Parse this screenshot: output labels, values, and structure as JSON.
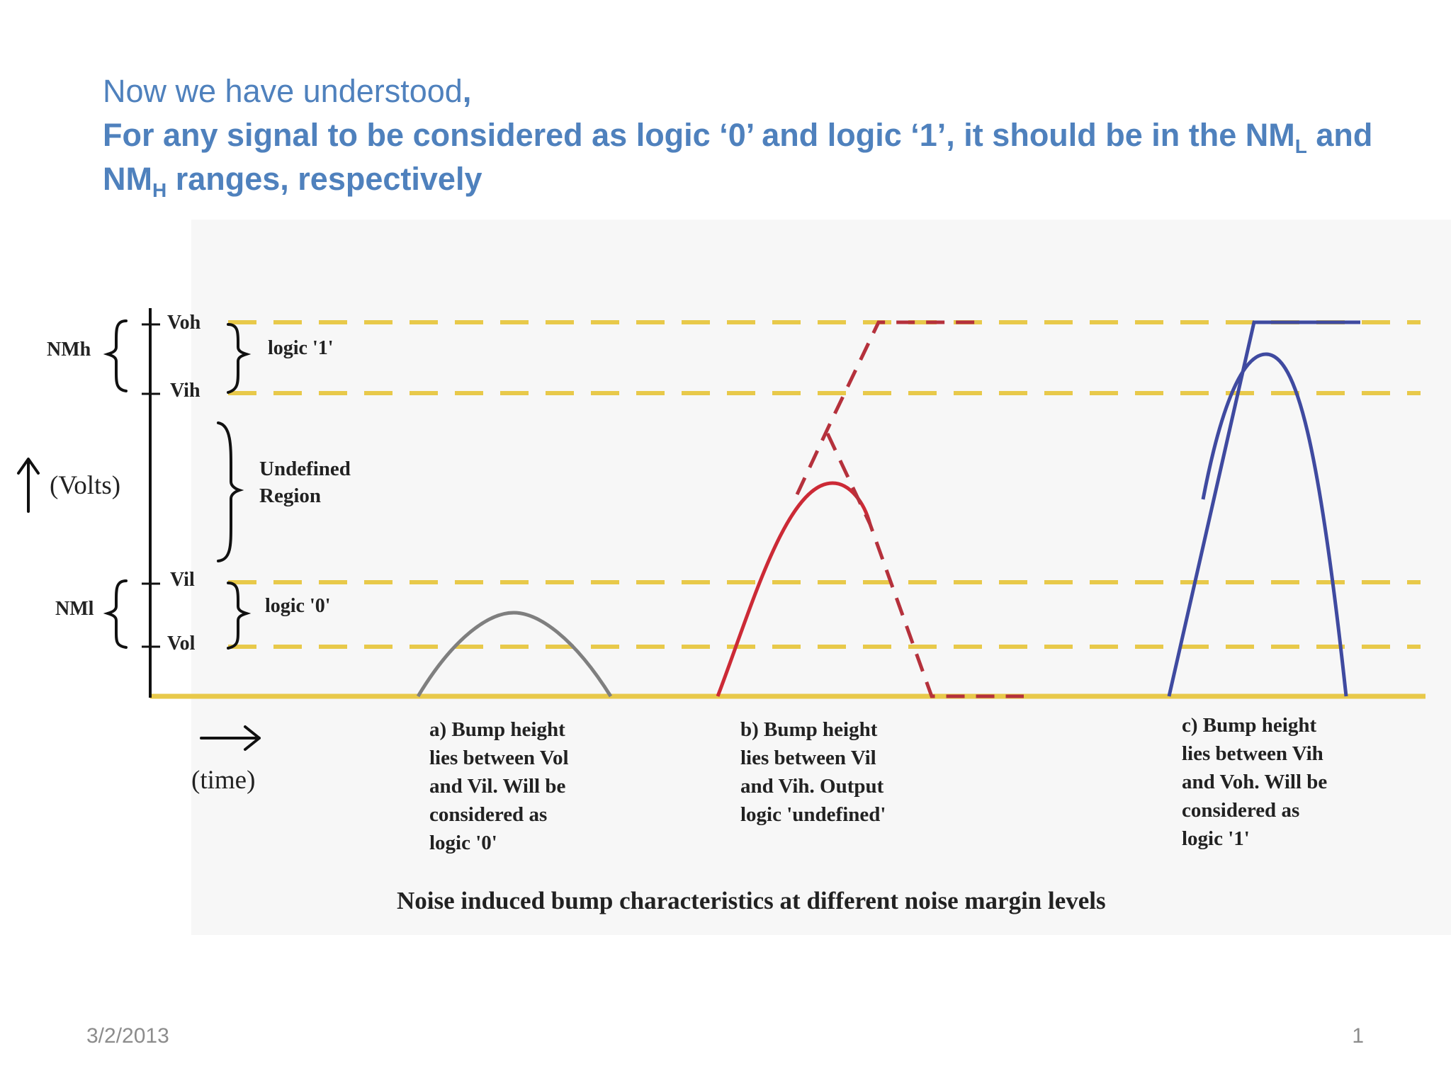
{
  "heading": {
    "line1_text": "Now we have understood",
    "line1_comma": ",",
    "line2_text": "For any signal to be considered as logic ‘0’ and logic ‘1’, it should be in the NM",
    "line2_sub": "L",
    "line2_end": " and",
    "line3_prefix": "NM",
    "line3_sub": "H",
    "line3_text": " ranges, respectively"
  },
  "figure": {
    "levels": {
      "voh": "Voh",
      "vih": "Vih",
      "vil": "Vil",
      "vol": "Vol"
    },
    "margins": {
      "nmh": "NMh",
      "nml": "NMl"
    },
    "regions": {
      "logic1": "logic '1'",
      "undefined_line1": "Undefined",
      "undefined_line2": "Region",
      "logic0": "logic '0'"
    },
    "axes": {
      "volts": "(Volts)",
      "time": "(time)"
    },
    "captions": {
      "a": "a) Bump height\nlies between Vol\nand Vil. Will be\nconsidered as\nlogic '0'",
      "b": "b) Bump height\nlies between Vil\nand Vih. Output\nlogic 'undefined'",
      "c": "c) Bump height\nlies between Vih\nand Voh. Will be\nconsidered as\nlogic '1'"
    },
    "title": "Noise induced bump characteristics at different noise margin levels",
    "colors": {
      "level_line": "#e8c94a",
      "bump_a": "#7f7f7f",
      "bump_b": "#cc2a36",
      "bump_b_dashed": "#b5313c",
      "bump_c": "#3f4aa0"
    }
  },
  "footer": {
    "date": "3/2/2013",
    "page": "1"
  }
}
